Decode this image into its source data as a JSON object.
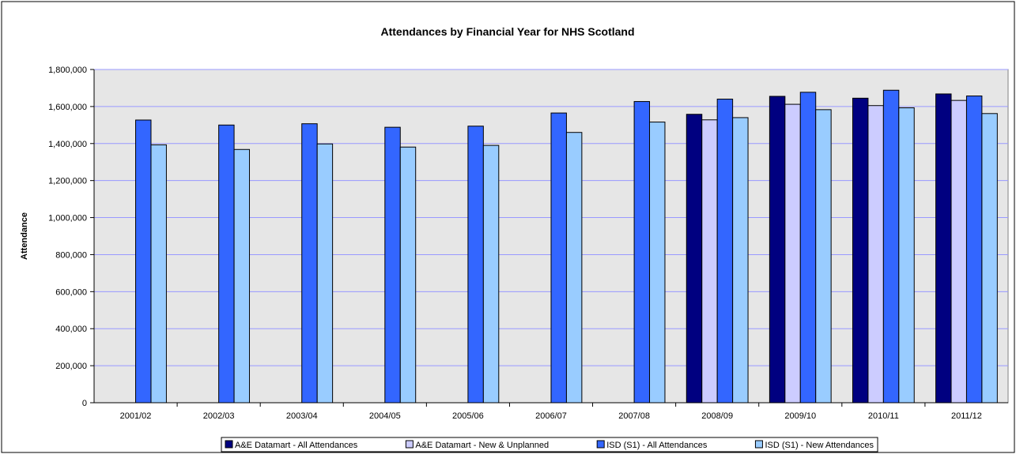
{
  "chart_data": {
    "type": "bar",
    "title": "Attendances by Financial Year for NHS Scotland",
    "xlabel": "",
    "ylabel": "Attendance",
    "ylim": [
      0,
      1800000
    ],
    "yticks": [
      0,
      200000,
      400000,
      600000,
      800000,
      1000000,
      1200000,
      1400000,
      1600000,
      1800000
    ],
    "ytick_labels": [
      "0",
      "200,000",
      "400,000",
      "600,000",
      "800,000",
      "1,000,000",
      "1,200,000",
      "1,400,000",
      "1,600,000",
      "1,800,000"
    ],
    "grid": true,
    "legend_position": "bottom",
    "categories": [
      "2001/02",
      "2002/03",
      "2003/04",
      "2004/05",
      "2005/06",
      "2006/07",
      "2007/08",
      "2008/09",
      "2009/10",
      "2010/11",
      "2011/12"
    ],
    "series": [
      {
        "name": "A&E Datamart - All Attendances",
        "color": "#000080",
        "values": [
          null,
          null,
          null,
          null,
          null,
          null,
          null,
          1558000,
          1655000,
          1645000,
          1668000
        ]
      },
      {
        "name": "A&E Datamart - New & Unplanned",
        "color": "#ccccff",
        "values": [
          null,
          null,
          null,
          null,
          null,
          null,
          null,
          1528000,
          1612000,
          1605000,
          1633000
        ]
      },
      {
        "name": "ISD (S1) - All Attendances",
        "color": "#3366ff",
        "values": [
          1527000,
          1500000,
          1507000,
          1488000,
          1494000,
          1565000,
          1627000,
          1640000,
          1677000,
          1688000,
          1657000
        ]
      },
      {
        "name": "ISD (S1) - New Attendances",
        "color": "#99ccff",
        "values": [
          1393000,
          1368000,
          1398000,
          1381000,
          1390000,
          1460000,
          1516000,
          1540000,
          1583000,
          1593000,
          1562000
        ]
      }
    ]
  }
}
